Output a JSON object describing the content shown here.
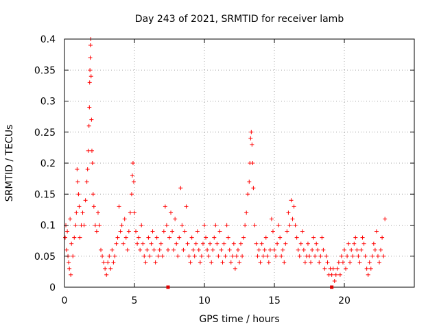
{
  "chart_data": {
    "type": "scatter",
    "title": "Day 243 of 2021, SRMTID for receiver lamb",
    "xlabel": "GPS time / hours",
    "ylabel": "SRMTID / TECUs",
    "xlim": [
      0,
      25
    ],
    "ylim": [
      0,
      0.4
    ],
    "x_ticks": [
      0,
      5,
      10,
      15,
      20
    ],
    "x_tick_labels": [
      "0",
      "5",
      "10",
      "15",
      "20"
    ],
    "y_ticks": [
      0,
      0.05,
      0.1,
      0.15,
      0.2,
      0.25,
      0.3,
      0.35,
      0.4
    ],
    "y_tick_labels": [
      "0",
      "0.05",
      "0.1",
      "0.15",
      "0.2",
      "0.25",
      "0.3",
      "0.35",
      "0.4"
    ],
    "grid": true,
    "marker": "plus",
    "color": "#ff0000",
    "data_gap_markers_x": [
      7.4,
      19.1
    ],
    "series": [
      {
        "name": "SRMTID",
        "points": [
          [
            0.05,
            0.08
          ],
          [
            0.1,
            0.1
          ],
          [
            0.15,
            0.06
          ],
          [
            0.2,
            0.09
          ],
          [
            0.25,
            0.05
          ],
          [
            0.3,
            0.04
          ],
          [
            0.35,
            0.03
          ],
          [
            0.4,
            0.11
          ],
          [
            0.45,
            0.02
          ],
          [
            0.5,
            0.07
          ],
          [
            0.6,
            0.05
          ],
          [
            0.7,
            0.08
          ],
          [
            0.8,
            0.1
          ],
          [
            0.85,
            0.12
          ],
          [
            0.9,
            0.19
          ],
          [
            0.95,
            0.17
          ],
          [
            1.0,
            0.15
          ],
          [
            1.05,
            0.13
          ],
          [
            1.1,
            0.08
          ],
          [
            1.2,
            0.1
          ],
          [
            1.3,
            0.12
          ],
          [
            1.4,
            0.1
          ],
          [
            1.5,
            0.14
          ],
          [
            1.6,
            0.17
          ],
          [
            1.65,
            0.19
          ],
          [
            1.7,
            0.22
          ],
          [
            1.75,
            0.26
          ],
          [
            1.78,
            0.29
          ],
          [
            1.8,
            0.33
          ],
          [
            1.82,
            0.35
          ],
          [
            1.84,
            0.37
          ],
          [
            1.86,
            0.39
          ],
          [
            1.88,
            0.4
          ],
          [
            1.9,
            0.34
          ],
          [
            1.93,
            0.27
          ],
          [
            1.96,
            0.22
          ],
          [
            2.0,
            0.2
          ],
          [
            2.05,
            0.15
          ],
          [
            2.1,
            0.13
          ],
          [
            2.2,
            0.1
          ],
          [
            2.3,
            0.09
          ],
          [
            2.4,
            0.12
          ],
          [
            2.5,
            0.1
          ],
          [
            2.6,
            0.06
          ],
          [
            2.7,
            0.05
          ],
          [
            2.8,
            0.04
          ],
          [
            2.9,
            0.03
          ],
          [
            3.0,
            0.02
          ],
          [
            3.1,
            0.04
          ],
          [
            3.2,
            0.05
          ],
          [
            3.3,
            0.03
          ],
          [
            3.4,
            0.06
          ],
          [
            3.5,
            0.04
          ],
          [
            3.6,
            0.05
          ],
          [
            3.7,
            0.07
          ],
          [
            3.8,
            0.08
          ],
          [
            3.9,
            0.13
          ],
          [
            4.0,
            0.09
          ],
          [
            4.1,
            0.1
          ],
          [
            4.2,
            0.07
          ],
          [
            4.3,
            0.11
          ],
          [
            4.4,
            0.08
          ],
          [
            4.5,
            0.06
          ],
          [
            4.6,
            0.09
          ],
          [
            4.7,
            0.12
          ],
          [
            4.8,
            0.15
          ],
          [
            4.85,
            0.18
          ],
          [
            4.9,
            0.2
          ],
          [
            4.95,
            0.17
          ],
          [
            5.0,
            0.12
          ],
          [
            5.1,
            0.09
          ],
          [
            5.2,
            0.07
          ],
          [
            5.3,
            0.08
          ],
          [
            5.4,
            0.06
          ],
          [
            5.5,
            0.1
          ],
          [
            5.6,
            0.07
          ],
          [
            5.7,
            0.05
          ],
          [
            5.8,
            0.04
          ],
          [
            5.9,
            0.06
          ],
          [
            6.0,
            0.08
          ],
          [
            6.1,
            0.05
          ],
          [
            6.2,
            0.07
          ],
          [
            6.3,
            0.09
          ],
          [
            6.4,
            0.06
          ],
          [
            6.5,
            0.04
          ],
          [
            6.6,
            0.08
          ],
          [
            6.7,
            0.05
          ],
          [
            6.8,
            0.06
          ],
          [
            6.9,
            0.07
          ],
          [
            7.0,
            0.05
          ],
          [
            7.1,
            0.09
          ],
          [
            7.2,
            0.13
          ],
          [
            7.3,
            0.1
          ],
          [
            7.4,
            0.06
          ],
          [
            7.5,
            0.08
          ],
          [
            7.6,
            0.12
          ],
          [
            7.7,
            0.09
          ],
          [
            7.8,
            0.06
          ],
          [
            7.9,
            0.11
          ],
          [
            8.0,
            0.07
          ],
          [
            8.1,
            0.05
          ],
          [
            8.2,
            0.08
          ],
          [
            8.3,
            0.16
          ],
          [
            8.4,
            0.1
          ],
          [
            8.5,
            0.06
          ],
          [
            8.6,
            0.09
          ],
          [
            8.7,
            0.13
          ],
          [
            8.8,
            0.07
          ],
          [
            8.9,
            0.05
          ],
          [
            9.0,
            0.04
          ],
          [
            9.1,
            0.08
          ],
          [
            9.2,
            0.06
          ],
          [
            9.3,
            0.05
          ],
          [
            9.4,
            0.07
          ],
          [
            9.5,
            0.09
          ],
          [
            9.6,
            0.06
          ],
          [
            9.7,
            0.04
          ],
          [
            9.8,
            0.05
          ],
          [
            9.9,
            0.07
          ],
          [
            10.0,
            0.1
          ],
          [
            10.1,
            0.08
          ],
          [
            10.2,
            0.06
          ],
          [
            10.3,
            0.05
          ],
          [
            10.4,
            0.07
          ],
          [
            10.5,
            0.04
          ],
          [
            10.6,
            0.06
          ],
          [
            10.7,
            0.08
          ],
          [
            10.8,
            0.1
          ],
          [
            10.9,
            0.07
          ],
          [
            11.0,
            0.05
          ],
          [
            11.1,
            0.09
          ],
          [
            11.2,
            0.06
          ],
          [
            11.3,
            0.04
          ],
          [
            11.4,
            0.07
          ],
          [
            11.5,
            0.05
          ],
          [
            11.6,
            0.1
          ],
          [
            11.7,
            0.08
          ],
          [
            11.8,
            0.06
          ],
          [
            11.9,
            0.04
          ],
          [
            12.0,
            0.05
          ],
          [
            12.1,
            0.07
          ],
          [
            12.2,
            0.03
          ],
          [
            12.3,
            0.05
          ],
          [
            12.4,
            0.06
          ],
          [
            12.5,
            0.04
          ],
          [
            12.6,
            0.07
          ],
          [
            12.7,
            0.05
          ],
          [
            12.8,
            0.08
          ],
          [
            12.9,
            0.1
          ],
          [
            13.0,
            0.12
          ],
          [
            13.1,
            0.15
          ],
          [
            13.2,
            0.17
          ],
          [
            13.25,
            0.2
          ],
          [
            13.3,
            0.24
          ],
          [
            13.35,
            0.25
          ],
          [
            13.4,
            0.23
          ],
          [
            13.45,
            0.2
          ],
          [
            13.5,
            0.16
          ],
          [
            13.6,
            0.1
          ],
          [
            13.7,
            0.07
          ],
          [
            13.8,
            0.05
          ],
          [
            13.9,
            0.06
          ],
          [
            14.0,
            0.04
          ],
          [
            14.1,
            0.07
          ],
          [
            14.2,
            0.05
          ],
          [
            14.3,
            0.06
          ],
          [
            14.4,
            0.08
          ],
          [
            14.5,
            0.05
          ],
          [
            14.6,
            0.04
          ],
          [
            14.7,
            0.06
          ],
          [
            14.8,
            0.11
          ],
          [
            14.9,
            0.09
          ],
          [
            15.0,
            0.06
          ],
          [
            15.1,
            0.05
          ],
          [
            15.2,
            0.07
          ],
          [
            15.3,
            0.1
          ],
          [
            15.4,
            0.08
          ],
          [
            15.5,
            0.05
          ],
          [
            15.6,
            0.06
          ],
          [
            15.7,
            0.04
          ],
          [
            15.8,
            0.07
          ],
          [
            15.9,
            0.09
          ],
          [
            16.0,
            0.12
          ],
          [
            16.1,
            0.1
          ],
          [
            16.2,
            0.14
          ],
          [
            16.3,
            0.11
          ],
          [
            16.4,
            0.13
          ],
          [
            16.5,
            0.1
          ],
          [
            16.6,
            0.08
          ],
          [
            16.7,
            0.06
          ],
          [
            16.8,
            0.05
          ],
          [
            16.9,
            0.07
          ],
          [
            17.0,
            0.09
          ],
          [
            17.1,
            0.06
          ],
          [
            17.2,
            0.04
          ],
          [
            17.3,
            0.05
          ],
          [
            17.4,
            0.07
          ],
          [
            17.5,
            0.05
          ],
          [
            17.6,
            0.04
          ],
          [
            17.7,
            0.06
          ],
          [
            17.8,
            0.08
          ],
          [
            17.9,
            0.05
          ],
          [
            18.0,
            0.07
          ],
          [
            18.1,
            0.06
          ],
          [
            18.2,
            0.04
          ],
          [
            18.3,
            0.05
          ],
          [
            18.4,
            0.08
          ],
          [
            18.5,
            0.06
          ],
          [
            18.6,
            0.03
          ],
          [
            18.7,
            0.05
          ],
          [
            18.8,
            0.04
          ],
          [
            18.9,
            0.02
          ],
          [
            19.0,
            0.03
          ],
          [
            19.1,
            0.02
          ],
          [
            19.2,
            0.03
          ],
          [
            19.3,
            0.01
          ],
          [
            19.4,
            0.02
          ],
          [
            19.5,
            0.03
          ],
          [
            19.6,
            0.04
          ],
          [
            19.7,
            0.02
          ],
          [
            19.8,
            0.05
          ],
          [
            19.9,
            0.04
          ],
          [
            20.0,
            0.06
          ],
          [
            20.1,
            0.03
          ],
          [
            20.2,
            0.05
          ],
          [
            20.3,
            0.07
          ],
          [
            20.4,
            0.04
          ],
          [
            20.5,
            0.06
          ],
          [
            20.6,
            0.05
          ],
          [
            20.7,
            0.07
          ],
          [
            20.8,
            0.08
          ],
          [
            20.9,
            0.06
          ],
          [
            21.0,
            0.05
          ],
          [
            21.1,
            0.04
          ],
          [
            21.2,
            0.06
          ],
          [
            21.3,
            0.08
          ],
          [
            21.4,
            0.07
          ],
          [
            21.5,
            0.05
          ],
          [
            21.6,
            0.03
          ],
          [
            21.7,
            0.02
          ],
          [
            21.8,
            0.04
          ],
          [
            21.9,
            0.03
          ],
          [
            22.0,
            0.05
          ],
          [
            22.1,
            0.07
          ],
          [
            22.2,
            0.06
          ],
          [
            22.3,
            0.09
          ],
          [
            22.4,
            0.05
          ],
          [
            22.5,
            0.04
          ],
          [
            22.6,
            0.06
          ],
          [
            22.7,
            0.08
          ],
          [
            22.8,
            0.05
          ],
          [
            22.9,
            0.11
          ]
        ]
      }
    ]
  }
}
